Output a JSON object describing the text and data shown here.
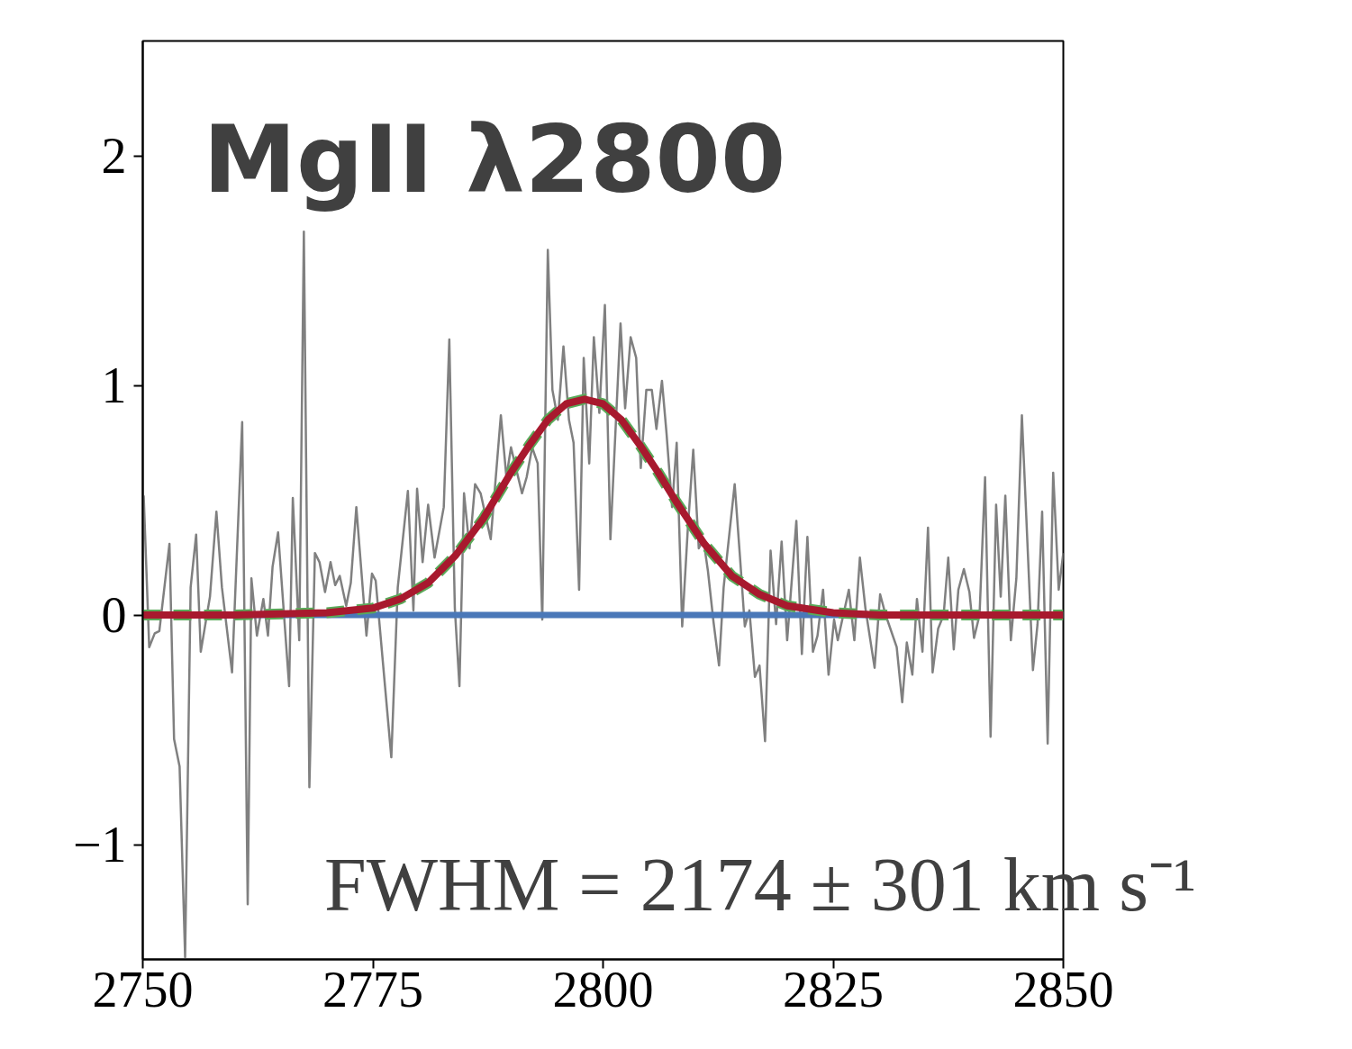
{
  "chart_data": {
    "type": "line",
    "title": "MgII λ2800",
    "annotations": [
      "FWHM = 2174 ± 301 km s⁻¹"
    ],
    "xlim": [
      2750,
      2850
    ],
    "xticks": [
      2750,
      2775,
      2800,
      2825,
      2850
    ],
    "ylim": [
      -1.5,
      2.5
    ],
    "yticks": [
      {
        "value": -1,
        "label": "−1"
      },
      0,
      1,
      2
    ],
    "grid": false,
    "marker": "none",
    "series": [
      {
        "color": "#808080",
        "line_style": "solid",
        "x": [
          2750.1,
          2750.7,
          2751.3,
          2751.8,
          2752.9,
          2753.4,
          2754.0,
          2754.6,
          2755.2,
          2755.8,
          2756.3,
          2757.3,
          2758.0,
          2758.6,
          2759.7,
          2760.8,
          2761.4,
          2761.8,
          2762.4,
          2763.1,
          2763.6,
          2764.1,
          2764.7,
          2765.9,
          2766.3,
          2767.0,
          2767.5,
          2768.1,
          2768.7,
          2769.2,
          2769.8,
          2770.4,
          2770.9,
          2771.4,
          2772.1,
          2772.6,
          2773.2,
          2774.3,
          2774.9,
          2775.3,
          2777.0,
          2777.7,
          2778.8,
          2779.4,
          2779.8,
          2780.4,
          2781.0,
          2781.7,
          2782.7,
          2783.3,
          2783.9,
          2784.4,
          2784.9,
          2785.5,
          2786.1,
          2786.7,
          2787.8,
          2788.9,
          2789.5,
          2790.0,
          2791.2,
          2791.7,
          2792.3,
          2792.9,
          2793.4,
          2794.0,
          2794.5,
          2795.1,
          2795.7,
          2796.3,
          2796.8,
          2797.4,
          2797.9,
          2798.5,
          2799.0,
          2799.6,
          2800.2,
          2800.8,
          2801.9,
          2802.4,
          2803.0,
          2803.6,
          2804.1,
          2804.7,
          2805.3,
          2805.8,
          2806.4,
          2806.9,
          2807.5,
          2808.0,
          2808.6,
          2809.2,
          2809.8,
          2810.4,
          2810.9,
          2811.4,
          2812.0,
          2812.6,
          2813.1,
          2814.3,
          2814.9,
          2815.4,
          2815.9,
          2816.5,
          2817.0,
          2817.6,
          2818.2,
          2818.8,
          2819.4,
          2820.0,
          2821.0,
          2821.6,
          2822.2,
          2822.8,
          2823.3,
          2823.9,
          2824.5,
          2825.1,
          2825.5,
          2826.7,
          2827.3,
          2827.9,
          2828.5,
          2829.5,
          2830.1,
          2830.7,
          2831.9,
          2832.5,
          2833.0,
          2833.6,
          2834.1,
          2834.7,
          2835.3,
          2835.8,
          2836.4,
          2837.0,
          2837.5,
          2838.1,
          2838.6,
          2839.2,
          2839.8,
          2840.3,
          2840.9,
          2841.5,
          2842.1,
          2842.7,
          2843.2,
          2843.7,
          2844.3,
          2844.9,
          2845.5,
          2846.7,
          2847.2,
          2847.7,
          2848.3,
          2848.9,
          2849.5,
          2850.0
        ],
        "values": [
          0.52,
          -0.14,
          -0.08,
          -0.07,
          0.31,
          -0.54,
          -0.66,
          -1.49,
          0.12,
          0.35,
          -0.16,
          0.08,
          0.45,
          0.12,
          -0.25,
          0.84,
          -1.26,
          0.16,
          -0.09,
          0.07,
          -0.09,
          0.21,
          0.36,
          -0.31,
          0.51,
          -0.11,
          1.67,
          -0.75,
          0.27,
          0.23,
          0.1,
          0.23,
          0.13,
          0.17,
          0.04,
          0.14,
          0.47,
          -0.09,
          0.18,
          0.15,
          -0.62,
          0.12,
          0.54,
          0.02,
          0.55,
          0.23,
          0.48,
          0.25,
          0.47,
          1.2,
          0.03,
          -0.31,
          0.53,
          0.29,
          0.57,
          0.53,
          0.33,
          0.87,
          0.6,
          0.73,
          0.53,
          0.6,
          0.73,
          0.66,
          -0.02,
          1.59,
          0.98,
          0.85,
          1.17,
          0.85,
          0.75,
          0.11,
          1.12,
          0.66,
          1.21,
          0.88,
          1.35,
          0.33,
          1.27,
          0.9,
          1.21,
          1.12,
          0.64,
          0.98,
          0.98,
          0.81,
          1.02,
          0.79,
          0.47,
          0.75,
          -0.05,
          0.37,
          0.72,
          0.29,
          0.33,
          0.19,
          -0.03,
          -0.22,
          0.12,
          0.57,
          0.24,
          -0.05,
          0.02,
          -0.27,
          -0.22,
          -0.55,
          0.28,
          -0.04,
          0.32,
          -0.11,
          0.41,
          -0.17,
          0.34,
          -0.16,
          -0.09,
          0.11,
          -0.26,
          -0.02,
          -0.11,
          0.11,
          -0.11,
          0.25,
          0.03,
          -0.23,
          0.09,
          0.0,
          -0.14,
          -0.38,
          -0.12,
          -0.26,
          0.07,
          -0.16,
          0.38,
          -0.25,
          -0.06,
          0.0,
          0.25,
          -0.15,
          0.11,
          0.2,
          0.1,
          -0.1,
          0.0,
          0.6,
          -0.53,
          0.48,
          0.08,
          0.52,
          -0.11,
          0.16,
          0.87,
          -0.24,
          -0.04,
          0.45,
          -0.56,
          0.62,
          0.11,
          0.27
        ]
      },
      {
        "color": "#4a78b8",
        "line_style": "solid",
        "x": [
          2750,
          2850
        ],
        "values": [
          0,
          0
        ]
      },
      {
        "color": "#5aaa5a",
        "line_style": "dashed",
        "x": [
          2750,
          2760,
          2770,
          2775,
          2778,
          2781,
          2784,
          2787,
          2790,
          2792,
          2794,
          2796,
          2798,
          2800,
          2802,
          2804,
          2806,
          2808,
          2811,
          2814,
          2817,
          2820,
          2825,
          2830,
          2840,
          2850
        ],
        "values": [
          0.0,
          0.0,
          0.01,
          0.03,
          0.07,
          0.14,
          0.26,
          0.42,
          0.62,
          0.74,
          0.85,
          0.92,
          0.94,
          0.92,
          0.85,
          0.74,
          0.62,
          0.49,
          0.31,
          0.17,
          0.09,
          0.04,
          0.01,
          0.0,
          0.0,
          0.0
        ]
      },
      {
        "color": "#a8192e",
        "line_style": "solid",
        "x": [
          2750,
          2760,
          2770,
          2775,
          2778,
          2781,
          2784,
          2787,
          2790,
          2792,
          2794,
          2796,
          2798,
          2800,
          2802,
          2804,
          2806,
          2808,
          2811,
          2814,
          2817,
          2820,
          2825,
          2830,
          2840,
          2850
        ],
        "values": [
          0.0,
          0.0,
          0.01,
          0.03,
          0.07,
          0.14,
          0.26,
          0.42,
          0.62,
          0.74,
          0.85,
          0.92,
          0.94,
          0.92,
          0.85,
          0.74,
          0.62,
          0.49,
          0.31,
          0.17,
          0.09,
          0.04,
          0.01,
          0.0,
          0.0,
          0.0
        ]
      }
    ]
  }
}
